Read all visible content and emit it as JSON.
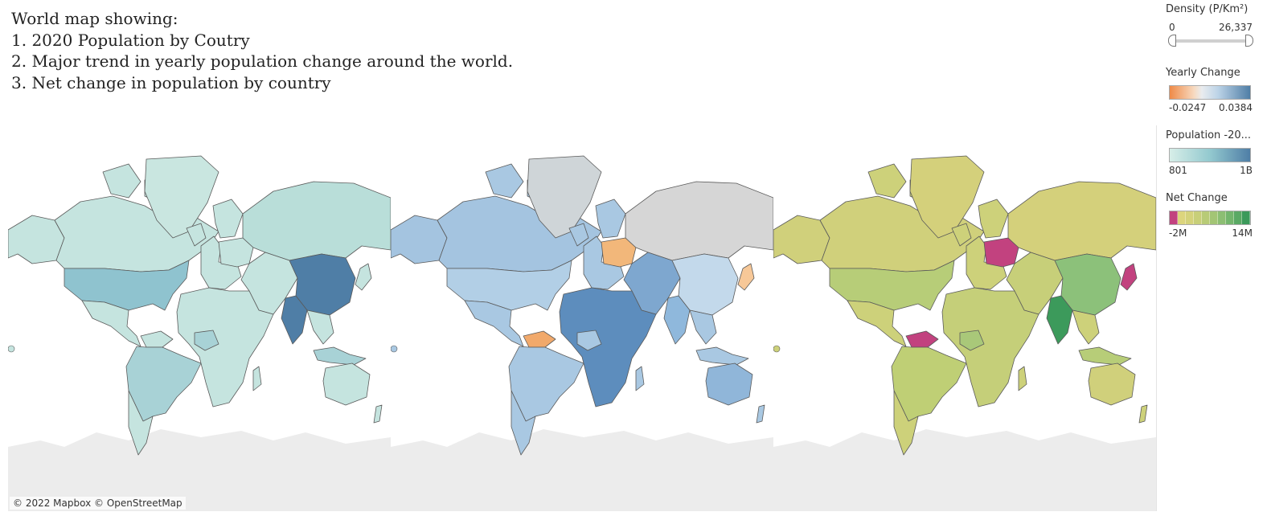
{
  "title": {
    "lines": [
      "World map showing:",
      "1. 2020 Population by Coutry",
      "2. Major trend in yearly population change around the world.",
      "3. Net change in population by country"
    ]
  },
  "attribution": "© 2022 Mapbox  © OpenStreetMap",
  "colors": {
    "ocean": "#ffffff",
    "antarctica": "#ececec",
    "border": "#5a5a5a"
  },
  "maps": [
    {
      "name": "Population 2020",
      "fills": {
        "default": "#c5e4df",
        "usa": "#8fc3cf",
        "china": "#4f7ea6",
        "india": "#4f7ea6",
        "brazil": "#a8d2d6",
        "russia": "#b9ded9",
        "indonesia": "#a8d2d6",
        "greenland": "#c9e6e0",
        "africa": "#c5e4df",
        "nigeria": "#a8d2d6"
      }
    },
    {
      "name": "Yearly Change",
      "fills": {
        "default": "#a9c8e2",
        "usa": "#b2cfe6",
        "china": "#c3d9eb",
        "india": "#8fb8dc",
        "brazil": "#a9c8e2",
        "russia": "#d6d6d6",
        "greenland": "#cfd5d8",
        "indonesia": "#a9c8e2",
        "africa": "#5d8dbd",
        "europe_east": "#f2b77a",
        "japan": "#f7c898",
        "venezuela": "#f1a96b",
        "australia": "#90b6d9",
        "canada": "#a4c4e0",
        "alaska": "#a4c4e0",
        "mideast": "#7ea7cf"
      }
    },
    {
      "name": "Net Change",
      "fills": {
        "default": "#cdd17a",
        "usa": "#b7cd78",
        "china": "#8cc17a",
        "india": "#3c9a5b",
        "brazil": "#bfcf75",
        "russia": "#d4d07b",
        "greenland": "#d4d07b",
        "indonesia": "#b7cd78",
        "africa": "#c5cf79",
        "nigeria": "#a9c879",
        "europe_east": "#c2427f",
        "japan": "#c2427f",
        "venezuela": "#c2427f",
        "australia": "#d0d07b",
        "canada": "#d0d07b",
        "alaska": "#d0d07b",
        "mideast": "#c7cf79"
      }
    }
  ],
  "legends": {
    "density": {
      "title": "Density (P/Km²)",
      "min": "0",
      "max": "26,337",
      "range_fraction": [
        0,
        1
      ]
    },
    "yearly_change": {
      "title": "Yearly Change",
      "min": "-0.0247",
      "max": "0.0384",
      "color_low": "#ef8a47",
      "color_mid": "#e9ecef",
      "color_high": "#4f7ea6"
    },
    "population": {
      "title": "Population -20...",
      "min": "801",
      "max": "1B",
      "color_low": "#d7eee8",
      "color_high": "#4f7ea6"
    },
    "net_change": {
      "title": "Net Change",
      "min": "-2M",
      "max": "14M",
      "steps": [
        "#c2427f",
        "#dcd57d",
        "#d4d27b",
        "#c8cf79",
        "#b8cb77",
        "#a3c575",
        "#8cbe73",
        "#73b56c",
        "#5aa964",
        "#3c9a5b"
      ]
    }
  }
}
